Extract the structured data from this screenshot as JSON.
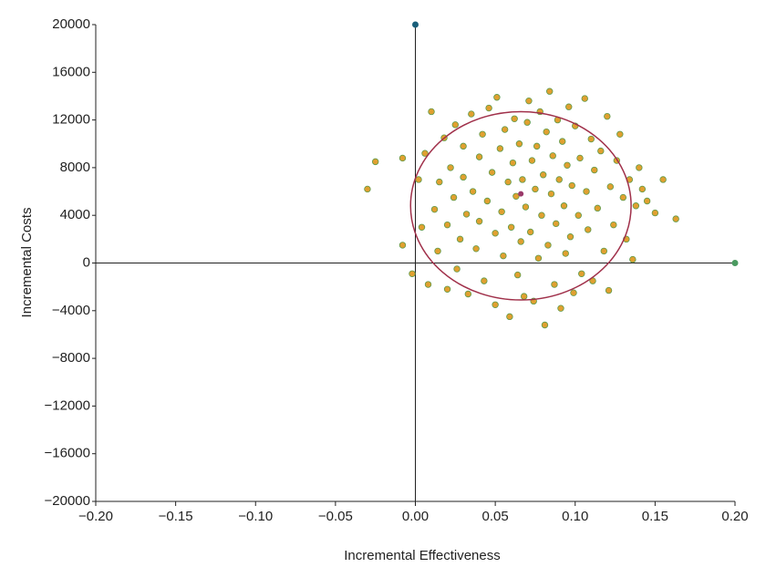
{
  "chart_data": {
    "type": "scatter",
    "xlabel": "Incremental Effectiveness",
    "ylabel": "Incremental Costs",
    "xlim": [
      -0.2,
      0.2
    ],
    "ylim": [
      -20000,
      20000
    ],
    "xticks": [
      {
        "value": -0.2,
        "label": "−0.20"
      },
      {
        "value": -0.15,
        "label": "−0.15"
      },
      {
        "value": -0.1,
        "label": "−0.10"
      },
      {
        "value": -0.05,
        "label": "−0.05"
      },
      {
        "value": 0,
        "label": "0.00"
      },
      {
        "value": 0.05,
        "label": "0.05"
      },
      {
        "value": 0.1,
        "label": "0.10"
      },
      {
        "value": 0.15,
        "label": "0.15"
      },
      {
        "value": 0.2,
        "label": "0.20"
      }
    ],
    "yticks": [
      {
        "value": -20000,
        "label": "−20000"
      },
      {
        "value": -16000,
        "label": "−16000"
      },
      {
        "value": -12000,
        "label": "−12000"
      },
      {
        "value": -8000,
        "label": "−8000"
      },
      {
        "value": -4000,
        "label": "−4000"
      },
      0,
      4000,
      8000,
      12000,
      16000,
      20000
    ],
    "series": [
      {
        "color": "#e0a030",
        "stroke": "#5f9a4a",
        "x": [
          -0.03,
          -0.025,
          -0.008,
          -0.008,
          -0.002,
          0.002,
          0.004,
          0.006,
          0.008,
          0.01,
          0.012,
          0.014,
          0.015,
          0.018,
          0.02,
          0.02,
          0.022,
          0.024,
          0.025,
          0.026,
          0.028,
          0.03,
          0.03,
          0.032,
          0.033,
          0.035,
          0.036,
          0.038,
          0.04,
          0.04,
          0.042,
          0.043,
          0.045,
          0.046,
          0.048,
          0.05,
          0.05,
          0.051,
          0.053,
          0.054,
          0.055,
          0.056,
          0.058,
          0.059,
          0.06,
          0.061,
          0.062,
          0.063,
          0.064,
          0.065,
          0.066,
          0.067,
          0.068,
          0.069,
          0.07,
          0.071,
          0.072,
          0.073,
          0.074,
          0.075,
          0.076,
          0.077,
          0.078,
          0.079,
          0.08,
          0.081,
          0.082,
          0.083,
          0.084,
          0.085,
          0.086,
          0.087,
          0.088,
          0.089,
          0.09,
          0.091,
          0.092,
          0.093,
          0.094,
          0.095,
          0.096,
          0.097,
          0.098,
          0.099,
          0.1,
          0.102,
          0.103,
          0.104,
          0.106,
          0.107,
          0.108,
          0.11,
          0.111,
          0.112,
          0.114,
          0.116,
          0.118,
          0.12,
          0.121,
          0.122,
          0.124,
          0.126,
          0.128,
          0.13,
          0.132,
          0.134,
          0.136,
          0.138,
          0.14,
          0.142,
          0.145,
          0.15,
          0.155,
          0.163
        ],
        "values": [
          6200,
          8500,
          8800,
          1500,
          -900,
          7000,
          3000,
          9200,
          -1800,
          12700,
          4500,
          1000,
          6800,
          10500,
          -2200,
          3200,
          8000,
          5500,
          11600,
          -500,
          2000,
          7200,
          9800,
          4100,
          -2600,
          12500,
          6000,
          1200,
          8900,
          3500,
          10800,
          -1500,
          5200,
          13000,
          7600,
          2500,
          -3500,
          13900,
          9600,
          4300,
          600,
          11200,
          6800,
          -4500,
          3000,
          8400,
          12100,
          5600,
          -1000,
          10000,
          1800,
          7000,
          -2800,
          4700,
          11800,
          13600,
          2600,
          8600,
          -3200,
          6200,
          9800,
          400,
          12700,
          4000,
          7400,
          -5200,
          11000,
          1500,
          14400,
          5800,
          9000,
          -1800,
          3300,
          12000,
          7000,
          -3800,
          10200,
          4800,
          800,
          8200,
          13100,
          2200,
          6500,
          -2500,
          11500,
          4000,
          8800,
          -900,
          13800,
          6000,
          2800,
          10400,
          -1500,
          7800,
          4600,
          9400,
          1000,
          12300,
          -2300,
          6400,
          3200,
          8600,
          10800,
          5500,
          2000,
          7000,
          300,
          4800,
          8000,
          6200,
          5200,
          4200,
          7000,
          3700
        ]
      }
    ],
    "ellipse": {
      "cx": 0.066,
      "cy": 4800,
      "rx": 0.069,
      "ry": 7900,
      "color": "#a0304a"
    },
    "mean_point": {
      "x": 0.066,
      "y": 5800,
      "color": "#9a3a6a"
    },
    "reference_points": [
      {
        "x": 0,
        "y": 20000,
        "color": "#1a5f7a"
      },
      {
        "x": 0.2,
        "y": 0,
        "color": "#4a9a60"
      }
    ]
  }
}
